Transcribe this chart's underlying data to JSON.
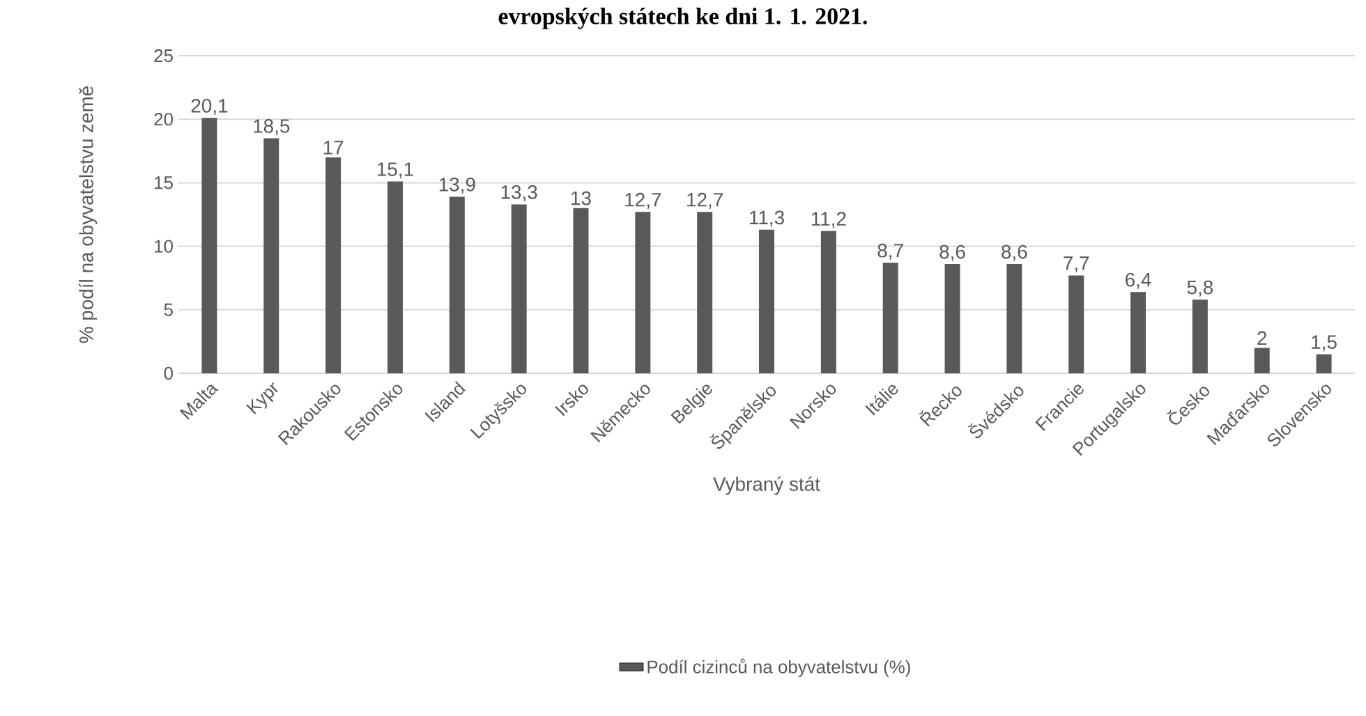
{
  "chart_data": {
    "type": "bar",
    "title": "evropských státech ke dni 1. 1. 2021.",
    "xlabel": "Vybraný stát",
    "ylabel": "% podíl na obyvatelstvu země",
    "categories": [
      "Malta",
      "Kypr",
      "Rakousko",
      "Estonsko",
      "Island",
      "Lotyšsko",
      "Irsko",
      "Německo",
      "Belgie",
      "Španělsko",
      "Norsko",
      "Itálie",
      "Řecko",
      "Švédsko",
      "Francie",
      "Portugalsko",
      "Česko",
      "Maďarsko",
      "Slovensko"
    ],
    "series": [
      {
        "name": "Podíl cizinců na obyvatelstvu (%)",
        "color": "#595959",
        "values": [
          20.1,
          18.5,
          17,
          15.1,
          13.9,
          13.3,
          13,
          12.7,
          12.7,
          11.3,
          11.2,
          8.7,
          8.6,
          8.6,
          7.7,
          6.4,
          5.8,
          2,
          1.5
        ],
        "value_labels": [
          "20,1",
          "18,5",
          "17",
          "15,1",
          "13,9",
          "13,3",
          "13",
          "12,7",
          "12,7",
          "11,3",
          "11,2",
          "8,7",
          "8,6",
          "8,6",
          "7,7",
          "6,4",
          "5,8",
          "2",
          "1,5"
        ]
      }
    ],
    "ylim": [
      0,
      25
    ],
    "yticks": [
      0,
      5,
      10,
      15,
      20,
      25
    ],
    "grid": "y",
    "legend": "bottom"
  }
}
